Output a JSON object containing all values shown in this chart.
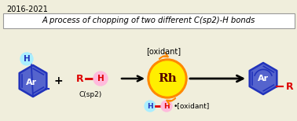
{
  "bg_color": "#f0eedc",
  "year_text": "2016-2021",
  "box_text": "A process of chopping of two different C(sp2)-H bonds",
  "oxidant_top": "[oxidant]",
  "oxidant_bottom": "•[oxidant]",
  "rh_text": "Rh",
  "ar_text": "Ar",
  "h_text": "H",
  "r_text": "R",
  "sp2_text": "C(sp2)",
  "plus_text": "+",
  "blue_dark": "#2233bb",
  "blue_fill": "#4455cc",
  "light_blue": "#aaeeff",
  "pink_hex": "#ffbbdd",
  "red_hex": "#dd0000",
  "yellow_hex": "#ffee00",
  "orange_hex": "#ff8800",
  "dark_red": "#550000",
  "black": "#000000",
  "white": "#ffffff",
  "gray_box": "#999999"
}
